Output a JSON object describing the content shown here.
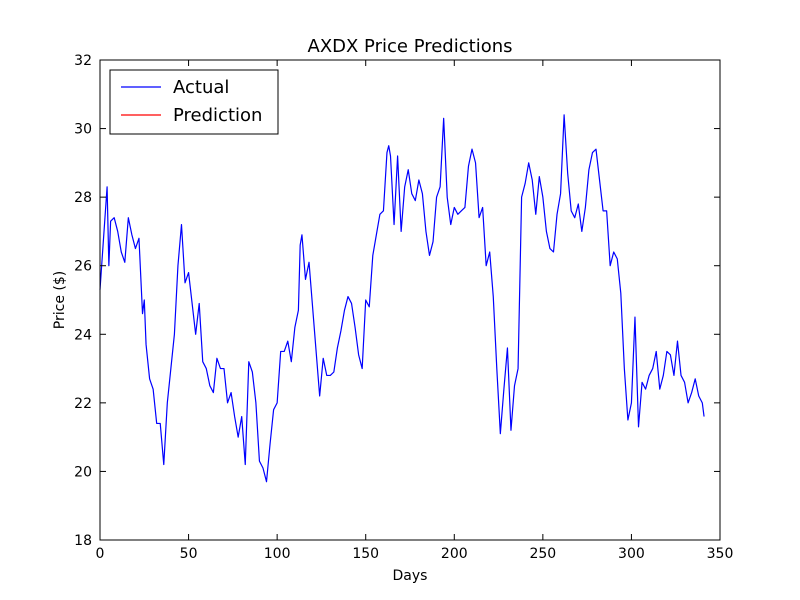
{
  "chart_data": {
    "type": "line",
    "title": "AXDX Price Predictions",
    "xlabel": "Days",
    "ylabel": "Price ($)",
    "xlim": [
      0,
      350
    ],
    "ylim": [
      18,
      32
    ],
    "xticks": [
      0,
      50,
      100,
      150,
      200,
      250,
      300,
      350
    ],
    "yticks": [
      18,
      20,
      22,
      24,
      26,
      28,
      30,
      32
    ],
    "grid": false,
    "legend_position": "top-left",
    "legend": [
      "Actual",
      "Prediction"
    ],
    "series": [
      {
        "name": "Actual",
        "color": "#0000ff",
        "x": [
          0,
          2,
          4,
          5,
          6,
          8,
          10,
          12,
          14,
          16,
          18,
          20,
          22,
          24,
          25,
          26,
          28,
          30,
          32,
          34,
          36,
          38,
          40,
          42,
          44,
          46,
          48,
          50,
          52,
          54,
          56,
          58,
          60,
          62,
          64,
          66,
          68,
          70,
          72,
          74,
          76,
          78,
          80,
          82,
          84,
          86,
          88,
          90,
          92,
          94,
          96,
          98,
          100,
          102,
          104,
          106,
          108,
          110,
          112,
          113,
          114,
          116,
          118,
          120,
          122,
          124,
          126,
          128,
          130,
          132,
          134,
          136,
          138,
          140,
          142,
          144,
          146,
          148,
          150,
          152,
          154,
          156,
          158,
          160,
          162,
          163,
          164,
          166,
          168,
          170,
          172,
          174,
          176,
          178,
          180,
          182,
          184,
          186,
          188,
          190,
          192,
          194,
          196,
          198,
          200,
          202,
          204,
          206,
          208,
          210,
          212,
          214,
          216,
          218,
          220,
          222,
          224,
          226,
          228,
          230,
          232,
          234,
          236,
          238,
          240,
          242,
          244,
          246,
          248,
          250,
          252,
          254,
          256,
          258,
          260,
          262,
          264,
          266,
          268,
          270,
          272,
          274,
          276,
          278,
          280,
          282,
          284,
          286,
          288,
          290,
          292,
          294,
          296,
          298,
          300,
          302,
          304,
          306,
          308,
          310,
          312,
          314,
          316,
          318,
          320,
          322,
          324,
          326,
          328,
          330,
          332,
          334,
          336,
          338,
          340,
          341
        ],
        "y": [
          25.3,
          26.8,
          28.3,
          26.0,
          27.3,
          27.4,
          27.0,
          26.4,
          26.1,
          27.4,
          26.9,
          26.5,
          26.8,
          24.6,
          25.0,
          23.7,
          22.7,
          22.4,
          21.4,
          21.4,
          20.2,
          22.0,
          23.0,
          24.0,
          26.0,
          27.2,
          25.5,
          25.8,
          24.9,
          24.0,
          24.9,
          23.2,
          23.0,
          22.5,
          22.3,
          23.3,
          23.0,
          23.0,
          22.0,
          22.3,
          21.6,
          21.0,
          21.6,
          20.2,
          23.2,
          22.9,
          22.0,
          20.3,
          20.1,
          19.7,
          20.8,
          21.8,
          22.0,
          23.5,
          23.5,
          23.8,
          23.2,
          24.2,
          24.7,
          26.6,
          26.9,
          25.6,
          26.1,
          24.8,
          23.5,
          22.2,
          23.3,
          22.8,
          22.8,
          22.9,
          23.6,
          24.1,
          24.7,
          25.1,
          24.9,
          24.2,
          23.4,
          23.0,
          25.0,
          24.8,
          26.3,
          26.9,
          27.5,
          27.6,
          29.3,
          29.5,
          29.2,
          27.2,
          29.2,
          27.0,
          28.3,
          28.8,
          28.1,
          27.9,
          28.5,
          28.1,
          27.0,
          26.3,
          26.7,
          28.0,
          28.3,
          30.3,
          28.0,
          27.2,
          27.7,
          27.5,
          27.6,
          27.7,
          28.9,
          29.4,
          29.0,
          27.4,
          27.7,
          26.0,
          26.4,
          25.1,
          23.0,
          21.1,
          22.4,
          23.6,
          21.2,
          22.5,
          23.0,
          28.0,
          28.4,
          29.0,
          28.5,
          27.5,
          28.6,
          28.0,
          27.0,
          26.5,
          26.4,
          27.5,
          28.1,
          30.4,
          28.7,
          27.6,
          27.4,
          27.8,
          27.0,
          27.7,
          28.8,
          29.3,
          29.4,
          28.5,
          27.6,
          27.6,
          26.0,
          26.4,
          26.2,
          25.2,
          23.0,
          21.5,
          22.0,
          24.5,
          21.3,
          22.6,
          22.4,
          22.8,
          23.0,
          23.5,
          22.4,
          22.8,
          23.5,
          23.4,
          22.8,
          23.8,
          22.8,
          22.6,
          22.0,
          22.3,
          22.7,
          22.2,
          22.0,
          21.6
        ]
      },
      {
        "name": "Prediction",
        "color": "#ff0000",
        "x": [],
        "y": []
      }
    ]
  }
}
